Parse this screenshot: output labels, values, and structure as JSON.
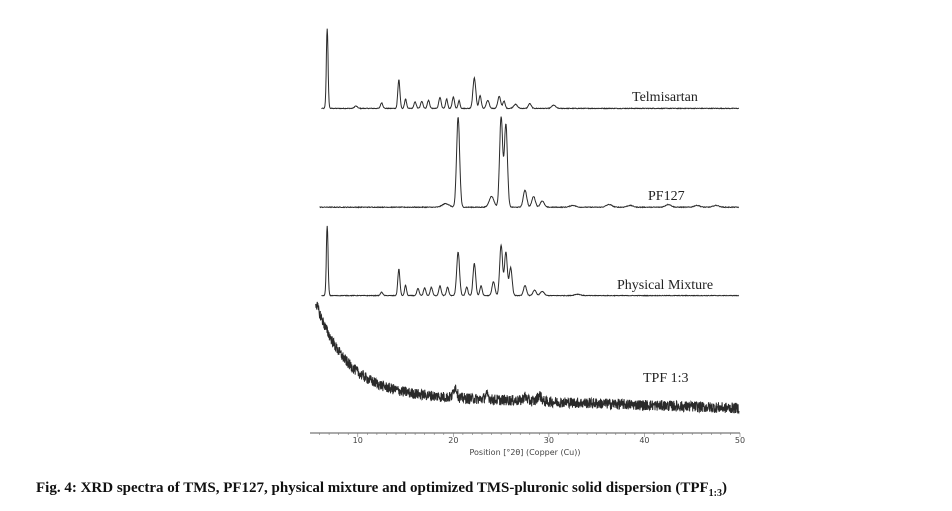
{
  "chart_data": {
    "type": "line",
    "xlabel": "Position [°2θ] (Copper (Cu))",
    "xlim": [
      5,
      50
    ],
    "xticks": [
      10,
      20,
      30,
      40,
      50
    ],
    "series": [
      {
        "name": "Telmisartan",
        "baseline": 0.02,
        "noise": 0.004,
        "peaks": [
          [
            6.8,
            1.0,
            0.09
          ],
          [
            9.8,
            0.03,
            0.15
          ],
          [
            12.5,
            0.07,
            0.12
          ],
          [
            14.3,
            0.36,
            0.11
          ],
          [
            15.0,
            0.12,
            0.1
          ],
          [
            16.0,
            0.08,
            0.12
          ],
          [
            16.7,
            0.09,
            0.12
          ],
          [
            17.4,
            0.1,
            0.12
          ],
          [
            18.6,
            0.14,
            0.12
          ],
          [
            19.3,
            0.12,
            0.1
          ],
          [
            20.0,
            0.14,
            0.12
          ],
          [
            20.6,
            0.1,
            0.1
          ],
          [
            22.2,
            0.38,
            0.15
          ],
          [
            22.8,
            0.16,
            0.12
          ],
          [
            23.6,
            0.1,
            0.15
          ],
          [
            24.8,
            0.15,
            0.15
          ],
          [
            25.3,
            0.09,
            0.12
          ],
          [
            26.5,
            0.05,
            0.2
          ],
          [
            28.0,
            0.06,
            0.15
          ],
          [
            30.5,
            0.04,
            0.2
          ]
        ]
      },
      {
        "name": "PF127",
        "baseline": 0.02,
        "noise": 0.004,
        "peaks": [
          [
            19.2,
            0.04,
            0.35
          ],
          [
            20.5,
            1.0,
            0.16
          ],
          [
            24.0,
            0.12,
            0.25
          ],
          [
            25.0,
            1.0,
            0.16
          ],
          [
            25.5,
            0.92,
            0.16
          ],
          [
            27.5,
            0.19,
            0.18
          ],
          [
            28.4,
            0.12,
            0.18
          ],
          [
            29.3,
            0.07,
            0.2
          ],
          [
            32.5,
            0.02,
            0.3
          ],
          [
            36.3,
            0.03,
            0.3
          ],
          [
            38.5,
            0.02,
            0.3
          ],
          [
            42.5,
            0.03,
            0.3
          ],
          [
            45.5,
            0.02,
            0.3
          ],
          [
            47.5,
            0.02,
            0.3
          ]
        ]
      },
      {
        "name": "Physical Mixture",
        "baseline": 0.02,
        "noise": 0.004,
        "peaks": [
          [
            6.8,
            1.0,
            0.09
          ],
          [
            12.5,
            0.05,
            0.12
          ],
          [
            14.3,
            0.38,
            0.11
          ],
          [
            15.0,
            0.15,
            0.1
          ],
          [
            16.3,
            0.1,
            0.12
          ],
          [
            17.0,
            0.11,
            0.12
          ],
          [
            17.7,
            0.12,
            0.12
          ],
          [
            18.6,
            0.14,
            0.12
          ],
          [
            19.4,
            0.12,
            0.12
          ],
          [
            20.5,
            0.62,
            0.15
          ],
          [
            21.4,
            0.12,
            0.12
          ],
          [
            22.2,
            0.46,
            0.14
          ],
          [
            22.9,
            0.14,
            0.12
          ],
          [
            24.2,
            0.2,
            0.15
          ],
          [
            25.0,
            0.72,
            0.15
          ],
          [
            25.5,
            0.62,
            0.15
          ],
          [
            26.0,
            0.4,
            0.15
          ],
          [
            27.5,
            0.14,
            0.16
          ],
          [
            28.5,
            0.08,
            0.16
          ],
          [
            29.3,
            0.06,
            0.2
          ],
          [
            33.0,
            0.02,
            0.3
          ]
        ]
      },
      {
        "name": "TPF 1:3",
        "baseline": 0.0,
        "noise": 0.05,
        "amorphous": {
          "amp": 1.0,
          "decay": 3.2,
          "floor": 0.18,
          "slope": -0.003
        },
        "peaks": [
          [
            20.2,
            0.1,
            0.18
          ],
          [
            23.5,
            0.04,
            0.2
          ],
          [
            27.5,
            0.04,
            0.2
          ],
          [
            29.0,
            0.06,
            0.2
          ]
        ]
      }
    ]
  },
  "caption": {
    "prefix": "Fig. 4: XRD spectra of TMS, PF127, physical mixture and optimized TMS-pluronic solid dispersion (TPF",
    "sub": "1:3",
    "suffix": ")"
  }
}
